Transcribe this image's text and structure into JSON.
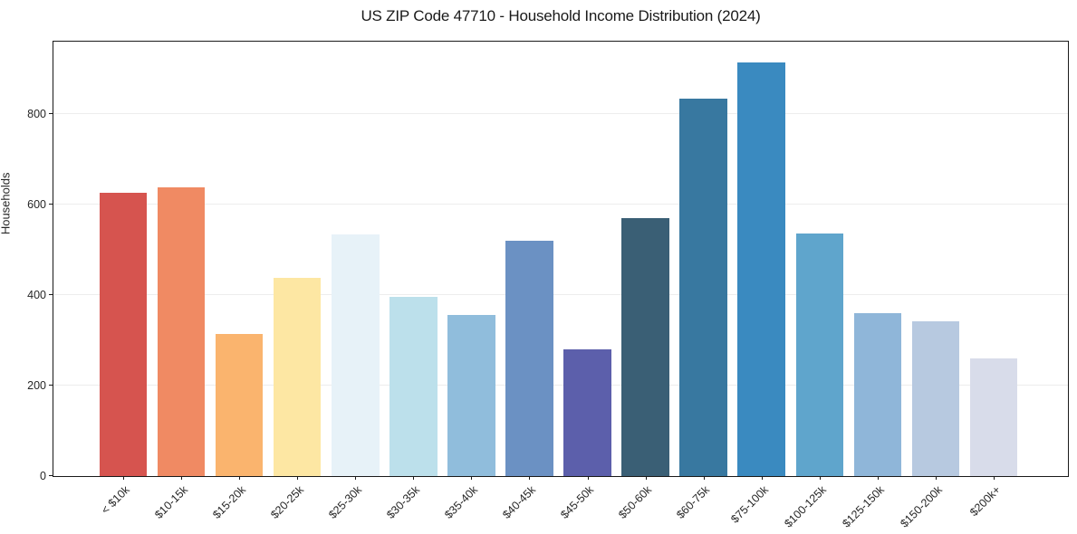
{
  "figure": {
    "title": "US ZIP Code 47710 - Household Income Distribution (2024)"
  },
  "chart_data": {
    "type": "bar",
    "title": "US ZIP Code 47710 - Household Income Distribution (2024)",
    "xlabel": "",
    "ylabel": "Households",
    "ylim": [
      0,
      960
    ],
    "yticks": [
      0,
      200,
      400,
      600,
      800
    ],
    "grid": "horizontal",
    "legend": "none",
    "categories": [
      "< $10k",
      "$10-15k",
      "$15-20k",
      "$20-25k",
      "$25-30k",
      "$30-35k",
      "$35-40k",
      "$40-45k",
      "$45-50k",
      "$50-60k",
      "$60-75k",
      "$75-100k",
      "$100-125k",
      "$125-150k",
      "$150-200k",
      "$200k+"
    ],
    "values": [
      627,
      639,
      314,
      438,
      534,
      396,
      356,
      521,
      280,
      571,
      835,
      915,
      536,
      360,
      342,
      261
    ],
    "bar_colors": [
      "#d6544f",
      "#f08a63",
      "#fab46e",
      "#fde7a3",
      "#e7f2f8",
      "#bce0eb",
      "#90bddc",
      "#6b91c3",
      "#5c5fab",
      "#3a5f75",
      "#3878a0",
      "#3a8ac0",
      "#5fa5cc",
      "#8fb6d9",
      "#b7c9e0",
      "#d8dcea"
    ]
  },
  "colors": {
    "background": "#ffffff",
    "spine": "#1a1a1a",
    "grid": "#ededed",
    "text": "#262626"
  }
}
